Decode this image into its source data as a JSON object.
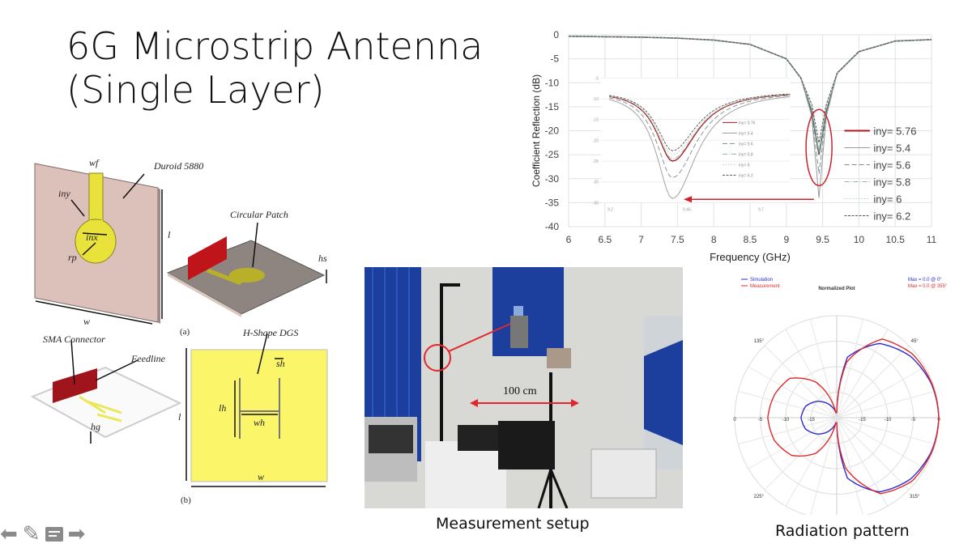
{
  "slide": {
    "title_line1": "6G Microstrip Antenna",
    "title_line2": "(Single Layer)"
  },
  "diagram": {
    "labels": {
      "wf": "wf",
      "duroid": "Duroid 5880",
      "iny": "iny",
      "inx": "inx",
      "rp": "rp",
      "l": "l",
      "w": "w",
      "circular_patch": "Circular Patch",
      "hs": "hs",
      "a": "(a)",
      "h_shape": "H-Shape DGS",
      "sma": "SMA Connector",
      "feedline": "Feedline",
      "hg": "hg",
      "sh": "sh",
      "lh": "lh",
      "wh": "wh",
      "l2": "l",
      "w2": "w",
      "b": "(b)"
    },
    "colors": {
      "substrate": "#dcc1ba",
      "copper": "#e8e23a",
      "connector": "#c0141b",
      "ground": "#fbf56a"
    }
  },
  "photo": {
    "distance_label": "100 cm",
    "caption": "Measurement setup",
    "colors": {
      "absorber": "#1c3f9e",
      "wall": "#d8d9d4",
      "pointer": "#e3262b"
    }
  },
  "radiation": {
    "caption": "Radiation pattern"
  },
  "toolbar": {
    "icons": [
      "arrow-left-icon",
      "pen-icon",
      "notes-icon",
      "arrow-right-icon"
    ]
  },
  "chart_data": [
    {
      "type": "line",
      "title": "",
      "xlabel": "Frequency (GHz)",
      "ylabel": "Coefficient Reflection (dB)",
      "xlim": [
        6,
        11
      ],
      "ylim": [
        -40,
        0
      ],
      "xticks": [
        "6",
        "6.5",
        "7",
        "7.5",
        "8",
        "8.5",
        "9",
        "9.5",
        "10",
        "10.5",
        "11"
      ],
      "yticks": [
        "0",
        "-5",
        "-10",
        "-15",
        "-20",
        "-25",
        "-30",
        "-35",
        "-40"
      ],
      "grid": true,
      "legend_placement": "right",
      "resonance_ghz": 9.45,
      "x": [
        6,
        6.5,
        7,
        7.5,
        8,
        8.5,
        9,
        9.2,
        9.35,
        9.45,
        9.55,
        9.7,
        10,
        10.5,
        11
      ],
      "series": [
        {
          "name": "iny= 5.76",
          "color": "#b0141c",
          "style": "solid-thick",
          "values": [
            -0.3,
            -0.4,
            -0.5,
            -0.7,
            -1.1,
            -2,
            -5,
            -9,
            -16,
            -25,
            -16,
            -8,
            -3.5,
            -1.3,
            -1
          ]
        },
        {
          "name": "iny= 5.4",
          "color": "#999999",
          "style": "solid-thin",
          "values": [
            -0.3,
            -0.4,
            -0.5,
            -0.7,
            -1.1,
            -2,
            -5,
            -9,
            -17,
            -34,
            -17,
            -8,
            -3.5,
            -1.3,
            -1
          ]
        },
        {
          "name": "iny= 5.6",
          "color": "#7a8f8a",
          "style": "dash",
          "values": [
            -0.3,
            -0.4,
            -0.5,
            -0.7,
            -1.1,
            -2,
            -5,
            -9,
            -16.5,
            -29,
            -16.5,
            -8,
            -3.5,
            -1.3,
            -1
          ]
        },
        {
          "name": "iny= 5.8",
          "color": "#8fb5a5",
          "style": "dash-dot",
          "values": [
            -0.3,
            -0.4,
            -0.5,
            -0.7,
            -1.1,
            -2,
            -5,
            -9,
            -15.5,
            -24.5,
            -15.5,
            -8,
            -3.5,
            -1.3,
            -1
          ]
        },
        {
          "name": "iny= 6",
          "color": "#a9d4c4",
          "style": "dot",
          "values": [
            -0.3,
            -0.4,
            -0.5,
            -0.7,
            -1.1,
            -2,
            -5,
            -9,
            -15,
            -23.5,
            -15,
            -8,
            -3.5,
            -1.3,
            -1
          ]
        },
        {
          "name": "iny= 6.2",
          "color": "#555555",
          "style": "dash-dense",
          "values": [
            -0.3,
            -0.4,
            -0.5,
            -0.7,
            -1.1,
            -2,
            -5,
            -9,
            -14.5,
            -22.5,
            -14.5,
            -8,
            -3.5,
            -1.3,
            -1
          ]
        }
      ],
      "inset": {
        "xticks": [
          "9.2",
          "9.46",
          "9.7"
        ],
        "yticks": [
          "-5",
          "-10",
          "-15",
          "-20",
          "-25",
          "-30",
          "-35"
        ],
        "legend": [
          "iny= 5.76",
          "iny= 5.4",
          "iny= 5.6",
          "iny= 5.8",
          "iny= 6",
          "iny= 6.2"
        ]
      },
      "annotation": "red ellipse around 9.45 GHz dip with arrow to zoomed inset"
    },
    {
      "type": "polar",
      "title": "Normalized Plot",
      "radial_ticks": [
        "0",
        "-5",
        "-10",
        "-15"
      ],
      "rlim": [
        -20,
        0
      ],
      "angle_labels": [
        "45°",
        "135°",
        "225°",
        "315°"
      ],
      "legend_placement": "top-left",
      "max_notes": [
        {
          "text": "Max = 0.0 @ 0°",
          "color": "#2a2ad0"
        },
        {
          "text": "Max = 0.0 @ 355°",
          "color": "#e02a2a"
        }
      ],
      "angles_deg": [
        0,
        20,
        40,
        60,
        80,
        90,
        100,
        120,
        140,
        160,
        180,
        200,
        220,
        240,
        260,
        270,
        280,
        300,
        320,
        340
      ],
      "series": [
        {
          "name": "Simulation",
          "color": "#2a2ad0",
          "values": [
            0,
            -0.3,
            -1.2,
            -3.2,
            -8,
            -19,
            -19,
            -17,
            -15,
            -13.5,
            -13,
            -13.5,
            -15,
            -17,
            -19,
            -19,
            -8,
            -3.2,
            -1.2,
            -0.3
          ]
        },
        {
          "name": "Measurement",
          "color": "#e02a2a",
          "values": [
            0,
            -0.2,
            -0.6,
            -2.2,
            -9,
            -19,
            -19,
            -12,
            -8,
            -7,
            -6.5,
            -7,
            -8.5,
            -12,
            -19,
            -19,
            -10,
            -2.8,
            -0.7,
            -0.2
          ]
        }
      ]
    }
  ]
}
